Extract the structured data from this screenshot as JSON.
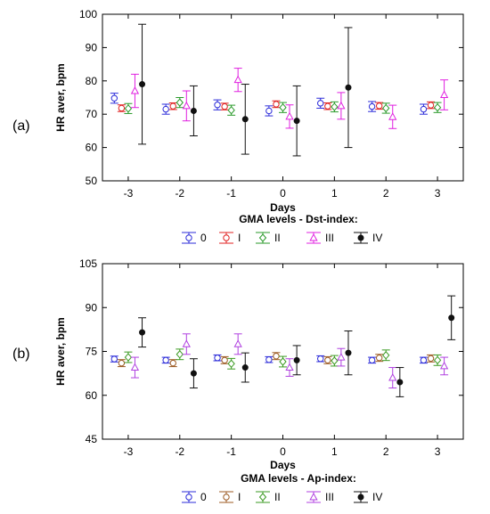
{
  "chart_data": [
    {
      "type": "scatter",
      "panel_label": "(a)",
      "xlabel": "Days",
      "ylabel": "HR aver, bpm",
      "categories": [
        "-3",
        "-2",
        "-1",
        "0",
        "1",
        "2",
        "3"
      ],
      "yticks": [
        "50",
        "60",
        "70",
        "80",
        "90",
        "100"
      ],
      "ylim": [
        50,
        100
      ],
      "legend_title": "GMA levels - Dst-index:",
      "legend_position": "bottom",
      "grid": false,
      "series": [
        {
          "name": "0",
          "color": "#2b2bd9",
          "marker": "circle-open",
          "values": [
            74.8,
            71.5,
            72.8,
            71.0,
            73.3,
            72.3,
            71.5
          ],
          "err": [
            1.5,
            1.5,
            1.5,
            1.5,
            1.5,
            1.5,
            1.5
          ]
        },
        {
          "name": "I",
          "color": "#e02020",
          "marker": "circle-open",
          "values": [
            71.8,
            72.4,
            72.3,
            73.0,
            72.4,
            72.5,
            72.7
          ],
          "err": [
            1.0,
            1.0,
            1.0,
            1.0,
            1.0,
            1.0,
            1.0
          ]
        },
        {
          "name": "II",
          "color": "#2a9a2a",
          "marker": "diamond-open",
          "values": [
            71.7,
            73.5,
            71.2,
            72.0,
            72.2,
            71.8,
            72.0
          ],
          "err": [
            1.5,
            1.5,
            1.5,
            1.5,
            1.5,
            1.5,
            1.5
          ]
        },
        {
          "name": "III",
          "color": "#e020e0",
          "marker": "triangle-open",
          "values": [
            77.0,
            72.5,
            80.3,
            69.3,
            72.5,
            69.2,
            75.8
          ],
          "err": [
            5.0,
            4.5,
            3.5,
            3.5,
            4.0,
            3.5,
            4.5
          ]
        },
        {
          "name": "IV",
          "color": "#111111",
          "marker": "circle-filled",
          "values": [
            79.0,
            71.0,
            68.5,
            68.0,
            78.0,
            null,
            null
          ],
          "err": [
            18.0,
            7.5,
            10.5,
            10.5,
            18.0,
            null,
            null
          ]
        }
      ]
    },
    {
      "type": "scatter",
      "panel_label": "(b)",
      "xlabel": "Days",
      "ylabel": "HR aver, bpm",
      "categories": [
        "-3",
        "-2",
        "-1",
        "0",
        "1",
        "2",
        "3"
      ],
      "yticks": [
        "45",
        "60",
        "75",
        "90",
        "105"
      ],
      "ylim": [
        45,
        105
      ],
      "legend_title": "GMA levels - Ap-index:",
      "legend_position": "bottom",
      "grid": false,
      "series": [
        {
          "name": "0",
          "color": "#2b2bd9",
          "marker": "circle-open",
          "values": [
            72.4,
            72.0,
            72.8,
            72.2,
            72.5,
            72.0,
            72.0
          ],
          "err": [
            1.0,
            1.0,
            1.0,
            1.0,
            1.0,
            1.0,
            1.0
          ]
        },
        {
          "name": "I",
          "color": "#9c5a22",
          "marker": "circle-open",
          "values": [
            71.0,
            71.0,
            72.0,
            73.4,
            72.0,
            72.8,
            72.6
          ],
          "err": [
            1.2,
            1.2,
            1.2,
            1.2,
            1.2,
            1.2,
            1.2
          ]
        },
        {
          "name": "II",
          "color": "#3a9a20",
          "marker": "diamond-open",
          "values": [
            73.0,
            74.0,
            70.8,
            71.5,
            71.8,
            73.7,
            72.0
          ],
          "err": [
            1.8,
            1.8,
            1.8,
            1.8,
            1.8,
            1.8,
            1.8
          ]
        },
        {
          "name": "III",
          "color": "#b040e0",
          "marker": "triangle-open",
          "values": [
            69.5,
            77.5,
            77.5,
            69.5,
            73.0,
            66.0,
            70.0
          ],
          "err": [
            3.5,
            3.5,
            3.5,
            3.0,
            3.0,
            3.5,
            3.0
          ]
        },
        {
          "name": "IV",
          "color": "#111111",
          "marker": "circle-filled",
          "values": [
            81.5,
            67.5,
            69.5,
            72.0,
            74.5,
            64.5,
            86.5
          ],
          "err": [
            5.0,
            5.0,
            5.0,
            5.0,
            7.5,
            5.0,
            7.5
          ]
        }
      ]
    }
  ]
}
